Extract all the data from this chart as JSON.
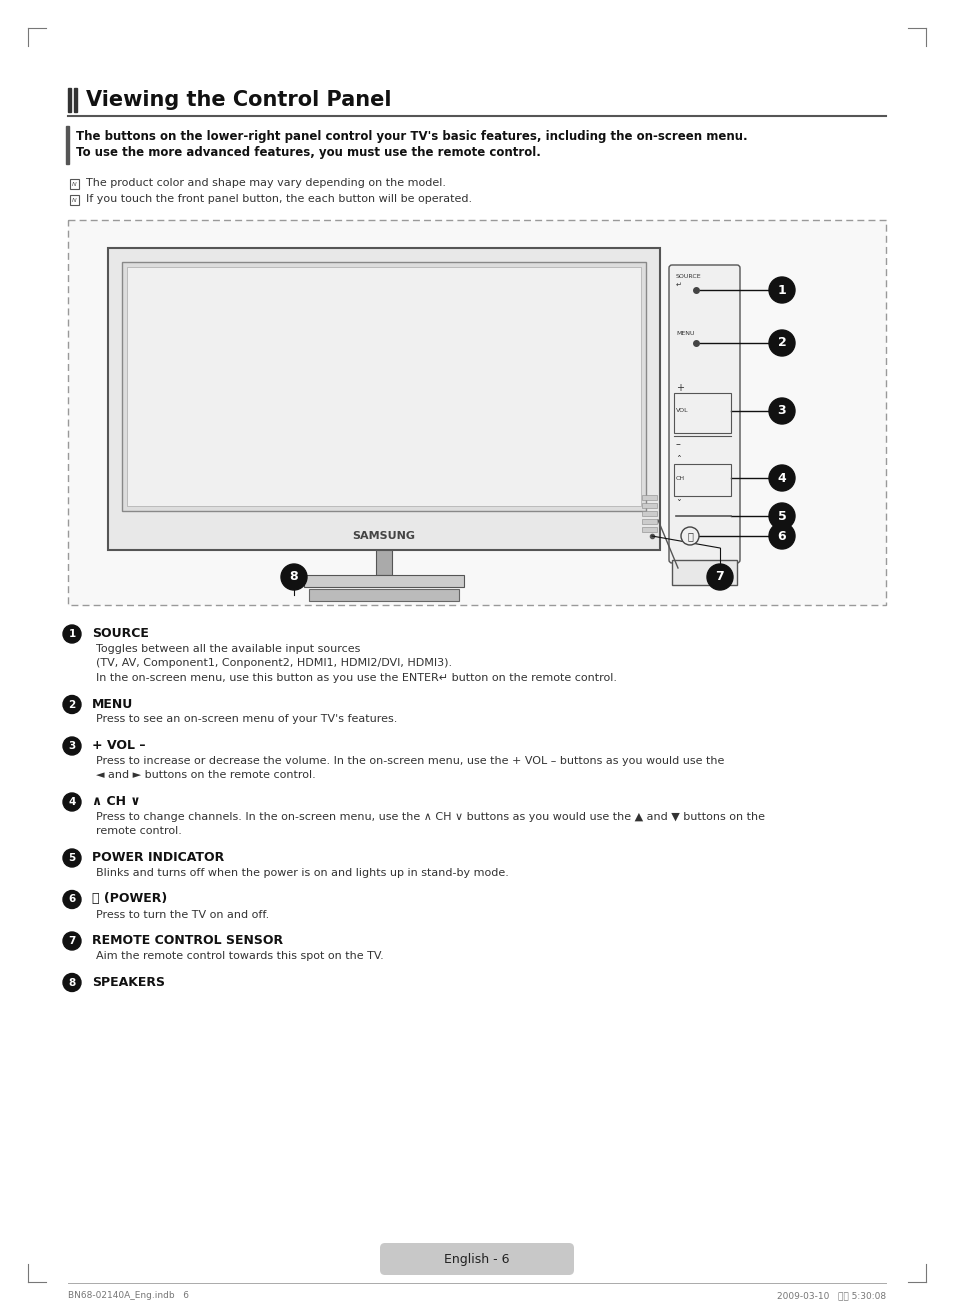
{
  "title": "Viewing the Control Panel",
  "intro_bold_line1": "The buttons on the lower-right panel control your TV's basic features, including the on-screen menu.",
  "intro_bold_line2": "To use the more advanced features, you must use the remote control.",
  "note1": "The product color and shape may vary depending on the model.",
  "note2": "If you touch the front panel button, the each button will be operated.",
  "items": [
    {
      "num": "1",
      "label_bold": "SOURCE",
      "label_extra": " ↵",
      "desc_lines": [
        "Toggles between all the available input sources",
        "(TV, AV, Component1, Conponent2, HDMI1, HDMI2/DVI, HDMI3).",
        "In the on-screen menu, use this button as you use the ENTER↵ button on the remote control."
      ]
    },
    {
      "num": "2",
      "label_bold": "MENU",
      "label_extra": "",
      "desc_lines": [
        "Press to see an on-screen menu of your TV's features."
      ]
    },
    {
      "num": "3",
      "label_bold": "+ VOL –",
      "label_extra": "",
      "desc_lines": [
        "Press to increase or decrease the volume. In the on-screen menu, use the + VOL – buttons as you would use the",
        "◄ and ► buttons on the remote control."
      ]
    },
    {
      "num": "4",
      "label_bold": "∧ CH ∨",
      "label_extra": "",
      "desc_lines": [
        "Press to change channels. In the on-screen menu, use the ∧ CH ∨ buttons as you would use the ▲ and ▼ buttons on the",
        "remote control."
      ]
    },
    {
      "num": "5",
      "label_bold": "POWER INDICATOR",
      "label_extra": "",
      "desc_lines": [
        "Blinks and turns off when the power is on and lights up in stand-by mode."
      ]
    },
    {
      "num": "6",
      "label_bold": "⏻ (POWER)",
      "label_extra": "",
      "desc_lines": [
        "Press to turn the TV on and off."
      ]
    },
    {
      "num": "7",
      "label_bold": "REMOTE CONTROL SENSOR",
      "label_extra": "",
      "desc_lines": [
        "Aim the remote control towards this spot on the TV."
      ]
    },
    {
      "num": "8",
      "label_bold": "SPEAKERS",
      "label_extra": "",
      "desc_lines": []
    }
  ],
  "footer_text": "English - 6",
  "bottom_left": "BN68-02140A_Eng.indb   6",
  "bottom_right": "2009-03-10   오후 5:30:08",
  "bg_color": "#ffffff",
  "text_color": "#000000",
  "gray_dark": "#2a2a2a",
  "gray_mid": "#888888",
  "gray_light": "#cccccc",
  "dashed_color": "#999999",
  "sidebar_bar_color": "#555555"
}
